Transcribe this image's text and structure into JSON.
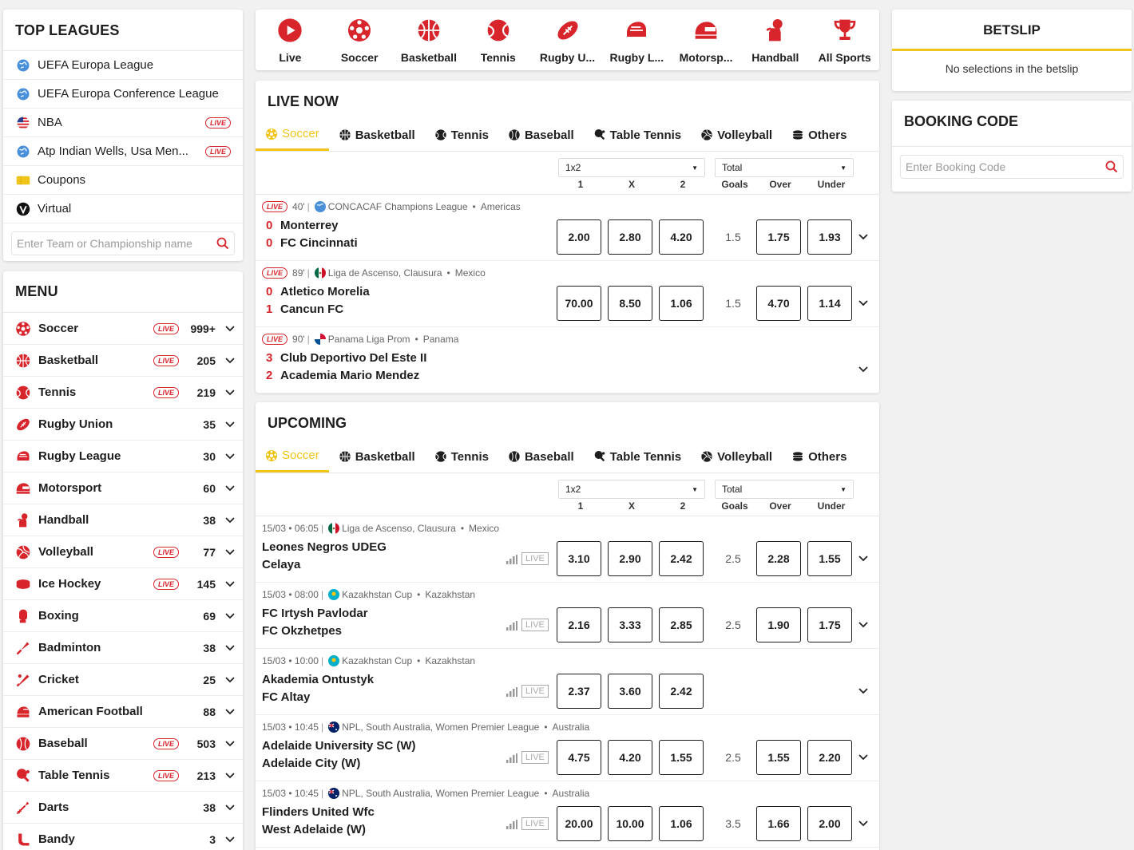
{
  "top_leagues": {
    "title": "TOP LEAGUES",
    "items": [
      {
        "name": "UEFA Europa League",
        "icon": "globe-icon",
        "live": ""
      },
      {
        "name": "UEFA Europa Conference League",
        "icon": "globe-icon",
        "live": ""
      },
      {
        "name": "NBA",
        "icon": "us-flag-icon",
        "live": "LIVE"
      },
      {
        "name": "Atp Indian Wells, Usa Men...",
        "icon": "globe-icon",
        "live": "LIVE"
      },
      {
        "name": "Coupons",
        "icon": "ticket-icon",
        "live": ""
      },
      {
        "name": "Virtual",
        "icon": "virtual-icon",
        "live": ""
      }
    ],
    "search_placeholder": "Enter Team or Championship name"
  },
  "menu": {
    "title": "MENU",
    "items": [
      {
        "name": "Soccer",
        "live": "LIVE",
        "count": "999+",
        "icon": "soccer-icon"
      },
      {
        "name": "Basketball",
        "live": "LIVE",
        "count": "205",
        "icon": "basketball-icon"
      },
      {
        "name": "Tennis",
        "live": "LIVE",
        "count": "219",
        "icon": "tennis-icon"
      },
      {
        "name": "Rugby Union",
        "live": "",
        "count": "35",
        "icon": "rugby-union-icon"
      },
      {
        "name": "Rugby League",
        "live": "",
        "count": "30",
        "icon": "rugby-league-icon"
      },
      {
        "name": "Motorsport",
        "live": "",
        "count": "60",
        "icon": "motorsport-icon"
      },
      {
        "name": "Handball",
        "live": "",
        "count": "38",
        "icon": "handball-icon"
      },
      {
        "name": "Volleyball",
        "live": "LIVE",
        "count": "77",
        "icon": "volleyball-icon"
      },
      {
        "name": "Ice Hockey",
        "live": "LIVE",
        "count": "145",
        "icon": "ice-hockey-icon"
      },
      {
        "name": "Boxing",
        "live": "",
        "count": "69",
        "icon": "boxing-icon"
      },
      {
        "name": "Badminton",
        "live": "",
        "count": "38",
        "icon": "badminton-icon"
      },
      {
        "name": "Cricket",
        "live": "",
        "count": "25",
        "icon": "cricket-icon"
      },
      {
        "name": "American Football",
        "live": "",
        "count": "88",
        "icon": "american-football-icon"
      },
      {
        "name": "Baseball",
        "live": "LIVE",
        "count": "503",
        "icon": "baseball-icon"
      },
      {
        "name": "Table Tennis",
        "live": "LIVE",
        "count": "213",
        "icon": "table-tennis-icon"
      },
      {
        "name": "Darts",
        "live": "",
        "count": "38",
        "icon": "darts-icon"
      },
      {
        "name": "Bandy",
        "live": "",
        "count": "3",
        "icon": "bandy-icon"
      }
    ]
  },
  "sports_bar": [
    {
      "label": "Live",
      "icon": "live-play-icon"
    },
    {
      "label": "Soccer",
      "icon": "soccer-icon"
    },
    {
      "label": "Basketball",
      "icon": "basketball-icon"
    },
    {
      "label": "Tennis",
      "icon": "tennis-icon"
    },
    {
      "label": "Rugby U...",
      "icon": "rugby-union-icon"
    },
    {
      "label": "Rugby L...",
      "icon": "rugby-league-icon"
    },
    {
      "label": "Motorsp...",
      "icon": "motorsport-icon"
    },
    {
      "label": "Handball",
      "icon": "handball-icon"
    },
    {
      "label": "All Sports",
      "icon": "trophy-icon"
    }
  ],
  "subtabs": [
    "Soccer",
    "Basketball",
    "Tennis",
    "Baseball",
    "Table Tennis",
    "Volleyball",
    "Others"
  ],
  "markets": {
    "select1": "1x2",
    "select2": "Total",
    "labels": [
      "1",
      "X",
      "2",
      "Goals",
      "Over",
      "Under"
    ]
  },
  "live_now": {
    "title": "LIVE NOW",
    "matches": [
      {
        "badge": "LIVE",
        "minute": "40'",
        "competition": "CONCACAF Champions League",
        "region": "Americas",
        "flag": "globe",
        "home": "Monterrey",
        "away": "FC Cincinnati",
        "home_score": "0",
        "away_score": "0",
        "odds": [
          "2.00",
          "2.80",
          "4.20"
        ],
        "line": "1.5",
        "over": "1.75",
        "under": "1.93"
      },
      {
        "badge": "LIVE",
        "minute": "89'",
        "competition": "Liga de Ascenso, Clausura",
        "region": "Mexico",
        "flag": "mexico",
        "home": "Atletico Morelia",
        "away": "Cancun FC",
        "home_score": "0",
        "away_score": "1",
        "odds": [
          "70.00",
          "8.50",
          "1.06"
        ],
        "line": "1.5",
        "over": "4.70",
        "under": "1.14"
      },
      {
        "badge": "LIVE",
        "minute": "90'",
        "competition": "Panama Liga Prom",
        "region": "Panama",
        "flag": "panama",
        "home": "Club Deportivo Del Este II",
        "away": "Academia Mario Mendez",
        "home_score": "3",
        "away_score": "2",
        "odds": [],
        "line": "",
        "over": "",
        "under": ""
      }
    ]
  },
  "upcoming": {
    "title": "UPCOMING",
    "live_tag": "LIVE",
    "matches": [
      {
        "time": "15/03 • 06:05",
        "competition": "Liga de Ascenso, Clausura",
        "region": "Mexico",
        "flag": "mexico",
        "home": "Leones Negros UDEG",
        "away": "Celaya",
        "odds": [
          "3.10",
          "2.90",
          "2.42"
        ],
        "line": "2.5",
        "over": "2.28",
        "under": "1.55"
      },
      {
        "time": "15/03 • 08:00",
        "competition": "Kazakhstan Cup",
        "region": "Kazakhstan",
        "flag": "kazakhstan",
        "home": "FC Irtysh Pavlodar",
        "away": "FC Okzhetpes",
        "odds": [
          "2.16",
          "3.33",
          "2.85"
        ],
        "line": "2.5",
        "over": "1.90",
        "under": "1.75"
      },
      {
        "time": "15/03 • 10:00",
        "competition": "Kazakhstan Cup",
        "region": "Kazakhstan",
        "flag": "kazakhstan",
        "home": "Akademia Ontustyk",
        "away": "FC Altay",
        "odds": [
          "2.37",
          "3.60",
          "2.42"
        ],
        "line": "",
        "over": "",
        "under": ""
      },
      {
        "time": "15/03 • 10:45",
        "competition": "NPL, South Australia, Women Premier League",
        "region": "Australia",
        "flag": "australia",
        "home": "Adelaide University SC (W)",
        "away": "Adelaide City (W)",
        "odds": [
          "4.75",
          "4.20",
          "1.55"
        ],
        "line": "2.5",
        "over": "1.55",
        "under": "2.20"
      },
      {
        "time": "15/03 • 10:45",
        "competition": "NPL, South Australia, Women Premier League",
        "region": "Australia",
        "flag": "australia",
        "home": "Flinders United Wfc",
        "away": "West Adelaide (W)",
        "odds": [
          "20.00",
          "10.00",
          "1.06"
        ],
        "line": "3.5",
        "over": "1.66",
        "under": "2.00"
      }
    ]
  },
  "betslip": {
    "title": "BETSLIP",
    "empty": "No selections in the betslip"
  },
  "booking": {
    "title": "BOOKING CODE",
    "placeholder": "Enter Booking Code"
  },
  "colors": {
    "accent": "#f0c419",
    "red": "#d8242b",
    "text": "#1e1e1e"
  }
}
